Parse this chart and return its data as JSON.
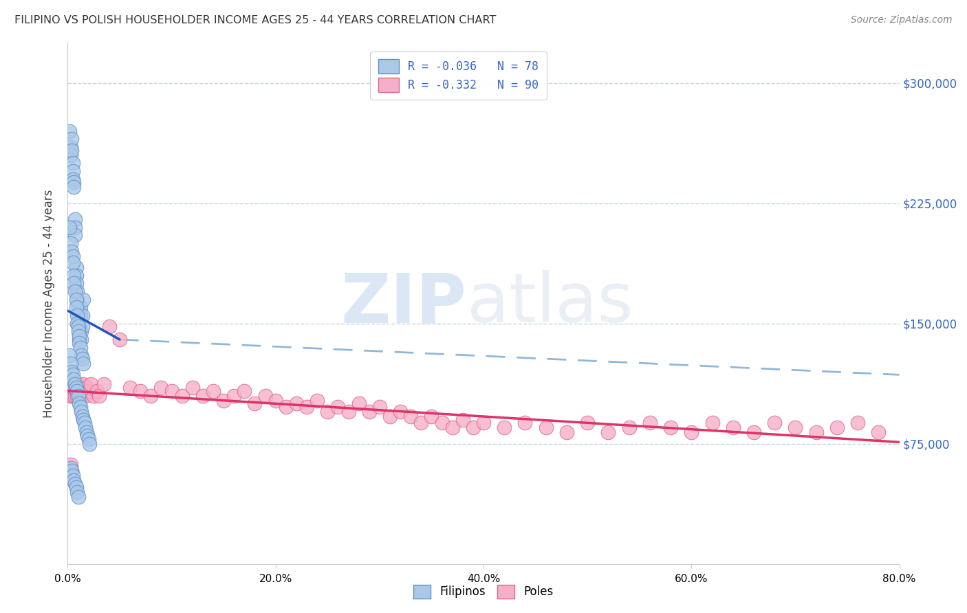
{
  "title": "FILIPINO VS POLISH HOUSEHOLDER INCOME AGES 25 - 44 YEARS CORRELATION CHART",
  "source": "Source: ZipAtlas.com",
  "ylabel": "Householder Income Ages 25 - 44 years",
  "watermark_zip": "ZIP",
  "watermark_atlas": "atlas",
  "legend_bottom_labels": [
    "Filipinos",
    "Poles"
  ],
  "R_filipino": -0.036,
  "N_filipino": 78,
  "R_polish": -0.332,
  "N_polish": 90,
  "filipino_color": "#aac8e8",
  "polish_color": "#f5afc8",
  "filipino_edge": "#6090c8",
  "polish_edge": "#e06888",
  "trend_filipino_color": "#2255bb",
  "trend_polish_color": "#dd3366",
  "dashed_color": "#90b8d8",
  "xlim": [
    0.0,
    0.8
  ],
  "ylim": [
    0,
    325000
  ],
  "yticks": [
    75000,
    150000,
    225000,
    300000
  ],
  "ytick_labels": [
    "$75,000",
    "$150,000",
    "$225,000",
    "$300,000"
  ],
  "background_color": "#ffffff",
  "grid_color": "#c8d4e4",
  "filipino_x": [
    0.002,
    0.003,
    0.003,
    0.004,
    0.004,
    0.005,
    0.005,
    0.005,
    0.006,
    0.006,
    0.007,
    0.007,
    0.007,
    0.008,
    0.008,
    0.008,
    0.009,
    0.009,
    0.01,
    0.01,
    0.01,
    0.011,
    0.011,
    0.012,
    0.012,
    0.013,
    0.013,
    0.014,
    0.014,
    0.015,
    0.002,
    0.003,
    0.004,
    0.005,
    0.005,
    0.006,
    0.006,
    0.007,
    0.008,
    0.008,
    0.009,
    0.009,
    0.01,
    0.01,
    0.011,
    0.011,
    0.012,
    0.013,
    0.014,
    0.015,
    0.002,
    0.003,
    0.004,
    0.005,
    0.006,
    0.007,
    0.008,
    0.009,
    0.01,
    0.011,
    0.012,
    0.013,
    0.014,
    0.015,
    0.016,
    0.017,
    0.018,
    0.019,
    0.02,
    0.021,
    0.003,
    0.004,
    0.005,
    0.006,
    0.007,
    0.008,
    0.009,
    0.01
  ],
  "filipino_y": [
    270000,
    260000,
    255000,
    265000,
    258000,
    250000,
    245000,
    240000,
    238000,
    235000,
    215000,
    210000,
    205000,
    185000,
    180000,
    175000,
    170000,
    165000,
    160000,
    155000,
    150000,
    145000,
    140000,
    160000,
    155000,
    145000,
    140000,
    155000,
    148000,
    165000,
    210000,
    200000,
    195000,
    192000,
    188000,
    180000,
    175000,
    170000,
    165000,
    160000,
    155000,
    150000,
    148000,
    145000,
    142000,
    138000,
    135000,
    130000,
    128000,
    125000,
    130000,
    125000,
    120000,
    118000,
    115000,
    112000,
    110000,
    108000,
    105000,
    100000,
    98000,
    95000,
    92000,
    90000,
    88000,
    85000,
    82000,
    80000,
    78000,
    75000,
    60000,
    58000,
    55000,
    52000,
    50000,
    48000,
    45000,
    42000
  ],
  "polish_x": [
    0.002,
    0.003,
    0.003,
    0.004,
    0.004,
    0.005,
    0.005,
    0.006,
    0.006,
    0.007,
    0.007,
    0.008,
    0.008,
    0.009,
    0.009,
    0.01,
    0.01,
    0.011,
    0.011,
    0.012,
    0.013,
    0.014,
    0.015,
    0.016,
    0.017,
    0.018,
    0.02,
    0.022,
    0.025,
    0.028,
    0.03,
    0.035,
    0.04,
    0.05,
    0.06,
    0.07,
    0.08,
    0.09,
    0.1,
    0.11,
    0.12,
    0.13,
    0.14,
    0.15,
    0.16,
    0.17,
    0.18,
    0.19,
    0.2,
    0.21,
    0.22,
    0.23,
    0.24,
    0.25,
    0.26,
    0.27,
    0.28,
    0.29,
    0.3,
    0.31,
    0.32,
    0.33,
    0.34,
    0.35,
    0.36,
    0.37,
    0.38,
    0.39,
    0.4,
    0.42,
    0.44,
    0.46,
    0.48,
    0.5,
    0.52,
    0.54,
    0.56,
    0.58,
    0.6,
    0.62,
    0.64,
    0.66,
    0.68,
    0.7,
    0.72,
    0.74,
    0.76,
    0.78,
    0.003,
    0.004
  ],
  "polish_y": [
    108000,
    105000,
    110000,
    108000,
    105000,
    112000,
    108000,
    105000,
    110000,
    108000,
    105000,
    110000,
    108000,
    112000,
    105000,
    110000,
    108000,
    112000,
    105000,
    110000,
    108000,
    105000,
    112000,
    108000,
    105000,
    110000,
    108000,
    112000,
    105000,
    108000,
    105000,
    112000,
    148000,
    140000,
    110000,
    108000,
    105000,
    110000,
    108000,
    105000,
    110000,
    105000,
    108000,
    102000,
    105000,
    108000,
    100000,
    105000,
    102000,
    98000,
    100000,
    98000,
    102000,
    95000,
    98000,
    95000,
    100000,
    95000,
    98000,
    92000,
    95000,
    92000,
    88000,
    92000,
    88000,
    85000,
    90000,
    85000,
    88000,
    85000,
    88000,
    85000,
    82000,
    88000,
    82000,
    85000,
    88000,
    85000,
    82000,
    88000,
    85000,
    82000,
    88000,
    85000,
    82000,
    85000,
    88000,
    82000,
    62000,
    58000
  ],
  "fil_trend_x": [
    0.0,
    0.05
  ],
  "fil_trend_y": [
    158000,
    140000
  ],
  "pol_trend_x": [
    0.0,
    0.8
  ],
  "pol_trend_y": [
    108000,
    76000
  ],
  "dash_trend_x": [
    0.05,
    0.8
  ],
  "dash_trend_y": [
    140000,
    118000
  ]
}
